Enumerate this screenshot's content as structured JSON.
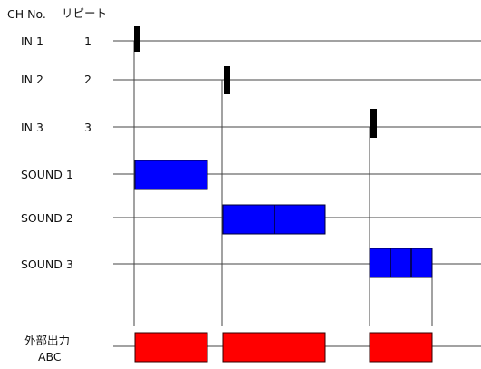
{
  "header": {
    "ch_no": "CH No.",
    "repeat": "リピート"
  },
  "inputs": [
    {
      "label": "IN  1",
      "repeat": "1"
    },
    {
      "label": "IN  2",
      "repeat": "2"
    },
    {
      "label": "IN  3",
      "repeat": "3"
    }
  ],
  "sounds": [
    {
      "label": "SOUND  1",
      "segments": 1
    },
    {
      "label": "SOUND  2",
      "segments": 2
    },
    {
      "label": "SOUND  3",
      "segments": 3
    }
  ],
  "output": {
    "label_line1": "外部出力",
    "label_line2": "ABC"
  },
  "colors": {
    "trigger": "#000000",
    "sound": "#0000ff",
    "output": "#ff0000",
    "line": "#444444"
  }
}
